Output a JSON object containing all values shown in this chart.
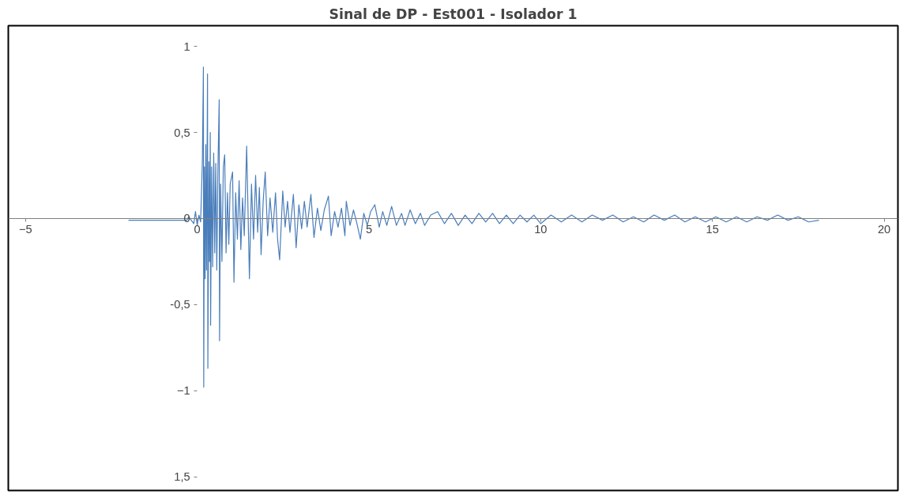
{
  "chart_data": {
    "type": "line",
    "title": "Sinal de DP - Est001 - Isolador 1",
    "color": "#4a7ebb",
    "xlim": [
      -5.5,
      20.4
    ],
    "ylim": [
      -1.58,
      1.12
    ],
    "xticks": [
      -5,
      0,
      5,
      10,
      15,
      20
    ],
    "yticks": [
      1,
      {
        "value": 0.5,
        "label": "0,5"
      },
      0,
      {
        "value": -0.5,
        "label": "-0,5"
      },
      -1,
      {
        "value": -1.5,
        "label": "1,5"
      }
    ],
    "x": [
      -2.0,
      -1.0,
      -0.3,
      -0.25,
      -0.1,
      -0.05,
      0,
      0.05,
      0.1,
      0.15,
      0.18,
      0.19,
      0.21,
      0.23,
      0.25,
      0.27,
      0.3,
      0.31,
      0.34,
      0.36,
      0.38,
      0.39,
      0.42,
      0.45,
      0.48,
      0.51,
      0.54,
      0.57,
      0.6,
      0.64,
      0.65,
      0.68,
      0.72,
      0.76,
      0.8,
      0.84,
      0.88,
      0.92,
      0.96,
      1.03,
      1.07,
      1.12,
      1.17,
      1.22,
      1.27,
      1.32,
      1.37,
      1.44,
      1.52,
      1.58,
      1.64,
      1.7,
      1.76,
      1.81,
      1.86,
      1.92,
      1.98,
      2.05,
      2.12,
      2.2,
      2.28,
      2.34,
      2.4,
      2.49,
      2.56,
      2.63,
      2.7,
      2.8,
      2.88,
      2.96,
      3.04,
      3.12,
      3.2,
      3.31,
      3.4,
      3.5,
      3.6,
      3.7,
      3.82,
      3.9,
      4.0,
      4.1,
      4.2,
      4.3,
      4.34,
      4.45,
      4.55,
      4.65,
      4.75,
      4.85,
      4.95,
      5.05,
      5.17,
      5.3,
      5.4,
      5.52,
      5.66,
      5.8,
      5.95,
      6.05,
      6.2,
      6.35,
      6.5,
      6.62,
      6.8,
      7.0,
      7.2,
      7.4,
      7.6,
      7.8,
      8.0,
      8.2,
      8.4,
      8.6,
      8.8,
      9.0,
      9.2,
      9.4,
      9.6,
      9.8,
      10.0,
      10.3,
      10.6,
      10.9,
      11.2,
      11.5,
      11.8,
      12.1,
      12.4,
      12.7,
      13.0,
      13.3,
      13.6,
      13.9,
      14.2,
      14.5,
      14.8,
      15.1,
      15.4,
      15.7,
      16.0,
      16.3,
      16.6,
      16.9,
      17.2,
      17.5,
      17.8,
      18.1
    ],
    "values": [
      -0.01,
      -0.01,
      -0.01,
      0.01,
      -0.03,
      0.04,
      -0.04,
      0.02,
      -0.02,
      0.33,
      0.88,
      -0.98,
      0.3,
      -0.35,
      0.43,
      -0.3,
      0.84,
      -0.87,
      0.33,
      -0.25,
      0.5,
      -0.62,
      0.3,
      -0.28,
      0.38,
      -0.2,
      0.32,
      -0.3,
      0.25,
      0.69,
      -0.71,
      0.2,
      -0.25,
      0.3,
      0.37,
      -0.2,
      0.15,
      -0.15,
      0.2,
      0.27,
      -0.37,
      0.15,
      -0.12,
      0.22,
      -0.18,
      0.12,
      -0.1,
      0.42,
      -0.35,
      0.2,
      -0.12,
      0.25,
      -0.08,
      0.18,
      -0.21,
      0.1,
      0.27,
      -0.1,
      0.12,
      -0.08,
      0.15,
      -0.12,
      -0.24,
      0.16,
      -0.05,
      0.1,
      -0.08,
      0.14,
      -0.17,
      0.08,
      -0.06,
      0.1,
      -0.05,
      0.14,
      -0.11,
      0.06,
      -0.07,
      0.05,
      0.13,
      -0.1,
      0.04,
      -0.05,
      0.06,
      -0.1,
      0.1,
      -0.04,
      0.05,
      -0.03,
      -0.12,
      0.03,
      -0.04,
      0.04,
      0.08,
      -0.05,
      0.04,
      -0.04,
      0.07,
      -0.04,
      0.03,
      -0.04,
      0.05,
      -0.03,
      0.03,
      -0.04,
      0.02,
      0.04,
      -0.03,
      0.03,
      -0.04,
      0.02,
      -0.03,
      0.03,
      -0.02,
      0.03,
      -0.03,
      0.02,
      -0.03,
      0.02,
      -0.02,
      0.02,
      -0.03,
      0.02,
      -0.02,
      0.02,
      -0.02,
      0.02,
      -0.01,
      0.02,
      -0.02,
      0.01,
      -0.02,
      0.02,
      -0.01,
      0.02,
      -0.02,
      0.01,
      -0.02,
      0.01,
      -0.02,
      0.01,
      -0.02,
      0.01,
      -0.01,
      0.02,
      -0.01,
      0.01,
      -0.02,
      -0.01
    ]
  }
}
